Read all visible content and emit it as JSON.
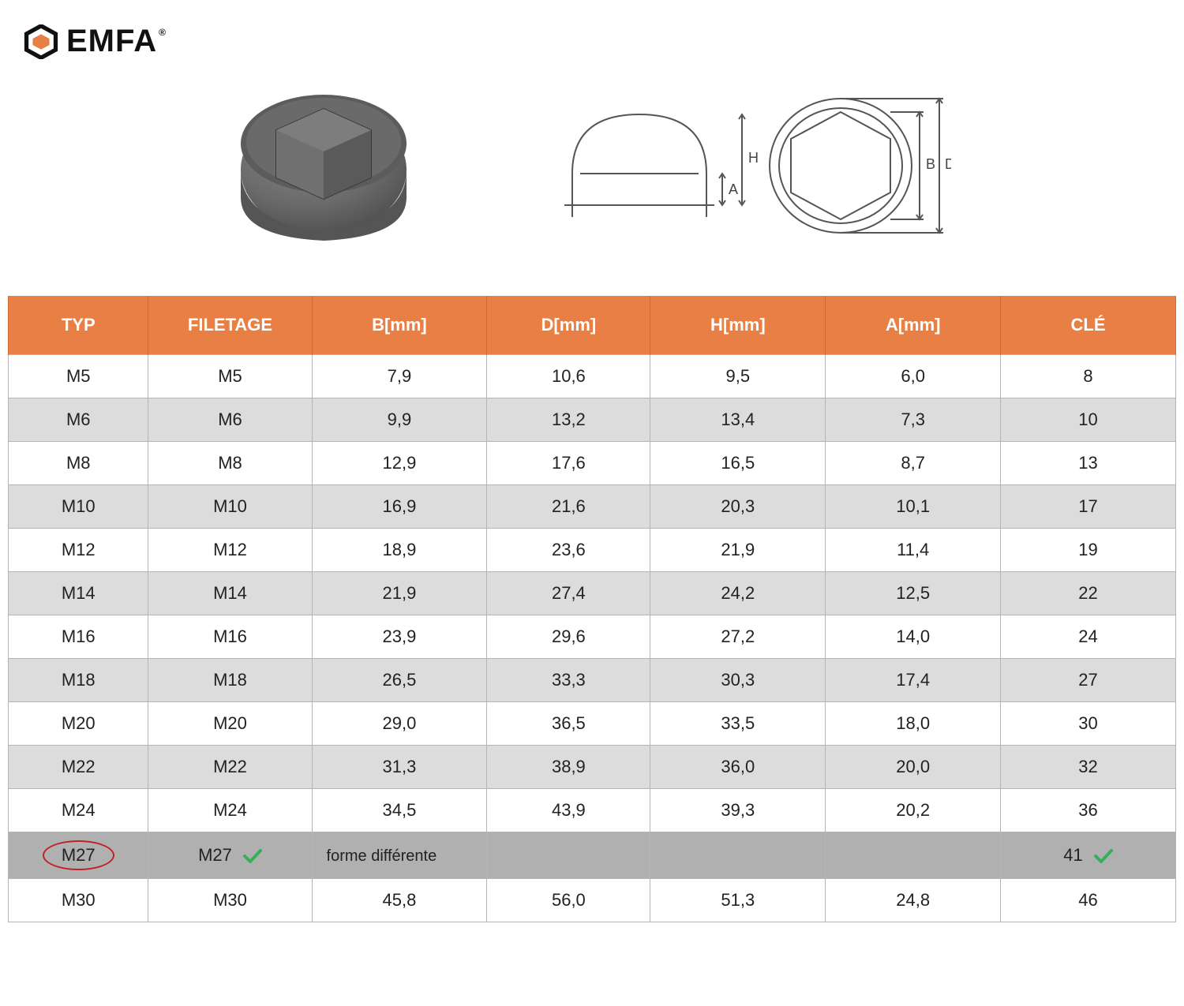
{
  "brand": {
    "name": "EMFA",
    "reg": "®",
    "hex_outer_color": "#111111",
    "hex_inner_color": "#e87f44"
  },
  "colors": {
    "header_bg": "#e87f44",
    "header_border": "#d06a32",
    "row_odd": "#ffffff",
    "row_even": "#dcdcdc",
    "row_highlight": "#b0b0b0",
    "border": "#b5b5b5",
    "circle": "#c0202a",
    "check": "#34b05a",
    "text": "#222222"
  },
  "product_render": {
    "body_color": "#6a6a6a",
    "shade_color": "#4a4a4a",
    "light_color": "#8a8a8a"
  },
  "diagram": {
    "stroke": "#555555",
    "labels": [
      "A",
      "H",
      "B",
      "D"
    ]
  },
  "table": {
    "columns": [
      "TYP",
      "FILETAGE",
      "B[mm]",
      "D[mm]",
      "H[mm]",
      "A[mm]",
      "CLÉ"
    ],
    "col_widths_pct": [
      12,
      14,
      15,
      14,
      15,
      15,
      15
    ],
    "rows": [
      {
        "cells": [
          "M5",
          "M5",
          "7,9",
          "10,6",
          "9,5",
          "6,0",
          "8"
        ],
        "shade": "odd"
      },
      {
        "cells": [
          "M6",
          "M6",
          "9,9",
          "13,2",
          "13,4",
          "7,3",
          "10"
        ],
        "shade": "even"
      },
      {
        "cells": [
          "M8",
          "M8",
          "12,9",
          "17,6",
          "16,5",
          "8,7",
          "13"
        ],
        "shade": "odd"
      },
      {
        "cells": [
          "M10",
          "M10",
          "16,9",
          "21,6",
          "20,3",
          "10,1",
          "17"
        ],
        "shade": "even"
      },
      {
        "cells": [
          "M12",
          "M12",
          "18,9",
          "23,6",
          "21,9",
          "11,4",
          "19"
        ],
        "shade": "odd"
      },
      {
        "cells": [
          "M14",
          "M14",
          "21,9",
          "27,4",
          "24,2",
          "12,5",
          "22"
        ],
        "shade": "even"
      },
      {
        "cells": [
          "M16",
          "M16",
          "23,9",
          "29,6",
          "27,2",
          "14,0",
          "24"
        ],
        "shade": "odd"
      },
      {
        "cells": [
          "M18",
          "M18",
          "26,5",
          "33,3",
          "30,3",
          "17,4",
          "27"
        ],
        "shade": "even"
      },
      {
        "cells": [
          "M20",
          "M20",
          "29,0",
          "36,5",
          "33,5",
          "18,0",
          "30"
        ],
        "shade": "odd"
      },
      {
        "cells": [
          "M22",
          "M22",
          "31,3",
          "38,9",
          "36,0",
          "20,0",
          "32"
        ],
        "shade": "even"
      },
      {
        "cells": [
          "M24",
          "M24",
          "34,5",
          "43,9",
          "39,3",
          "20,2",
          "36"
        ],
        "shade": "odd"
      },
      {
        "cells": [
          "M27",
          "M27",
          "forme différente",
          "",
          "",
          "",
          "41"
        ],
        "shade": "highlight",
        "circled_col0": true,
        "check_col1": true,
        "check_col6": true,
        "note_col2": true
      },
      {
        "cells": [
          "M30",
          "M30",
          "45,8",
          "56,0",
          "51,3",
          "24,8",
          "46"
        ],
        "shade": "odd"
      }
    ]
  }
}
